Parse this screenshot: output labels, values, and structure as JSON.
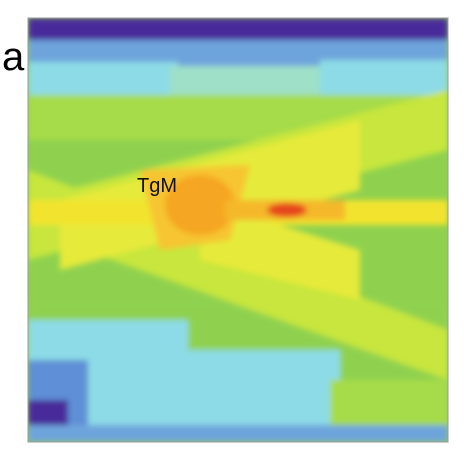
{
  "panel_label": "a",
  "annotation": "TgM"
}
